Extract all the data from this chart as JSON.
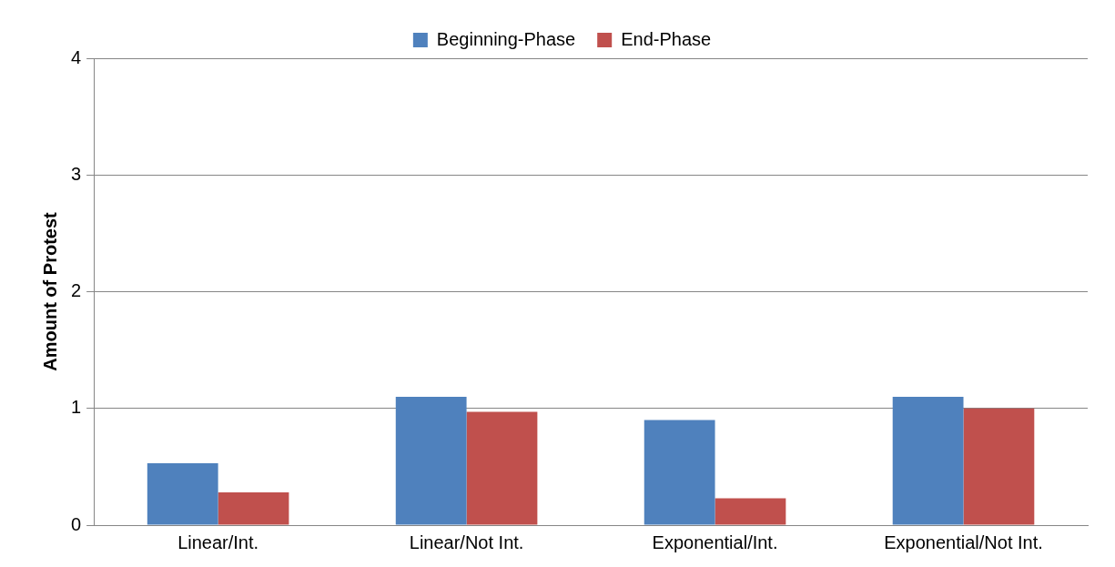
{
  "chart_data": {
    "type": "bar",
    "ylabel": "Amount of Protest",
    "categories": [
      "Linear/Int.",
      "Linear/Not Int.",
      "Exponential/Int.",
      "Exponential/Not Int."
    ],
    "series": [
      {
        "name": "Beginning-Phase",
        "color": "#4f81bd",
        "values": [
          0.53,
          1.1,
          0.9,
          1.1
        ]
      },
      {
        "name": "End-Phase",
        "color": "#c0504d",
        "values": [
          0.28,
          0.97,
          0.23,
          1.0
        ]
      }
    ],
    "ylim": [
      0,
      4
    ],
    "yticks": [
      0,
      1,
      2,
      3,
      4
    ],
    "grid": "y",
    "legend": "top"
  }
}
